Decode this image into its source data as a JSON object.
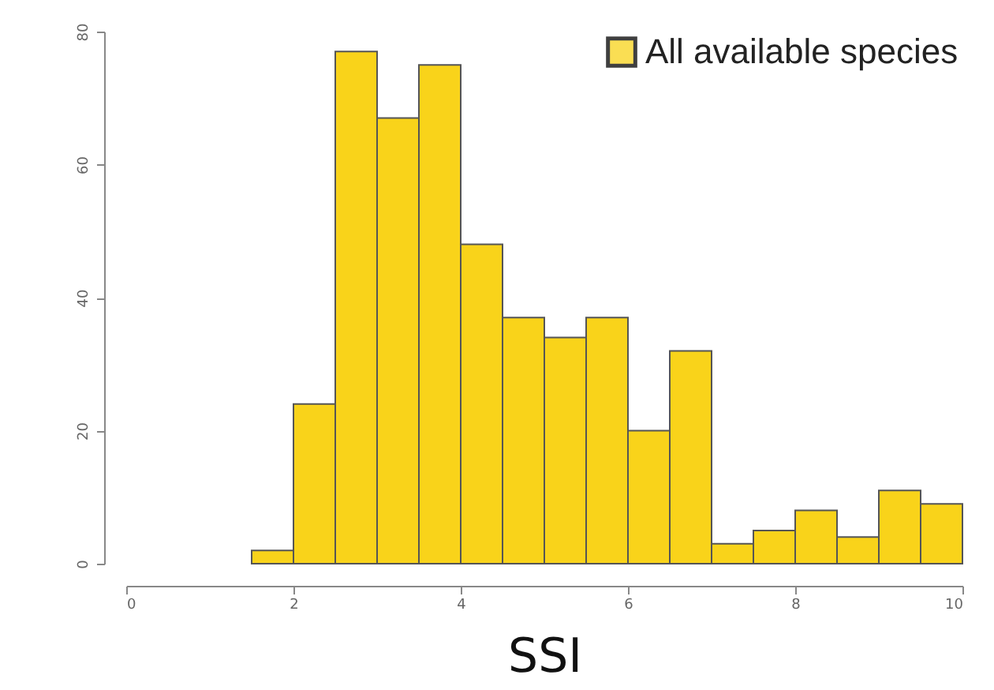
{
  "chart_data": {
    "type": "histogram",
    "xlabel": "SSI",
    "bins": [
      1.5,
      2,
      2.5,
      3,
      3.5,
      4,
      4.5,
      5,
      5.5,
      6,
      6.5,
      7,
      7.5,
      8,
      8.5,
      9,
      9.5,
      10
    ],
    "series": [
      {
        "name": "All available species",
        "color": "#f9d31a",
        "values": [
          2,
          24,
          77,
          67,
          75,
          48,
          37,
          34,
          37,
          20,
          32,
          3,
          5,
          8,
          4,
          11,
          9
        ]
      }
    ],
    "xlim": [
      0,
      10
    ],
    "xticks": [
      0,
      2,
      4,
      6,
      8,
      10
    ],
    "ylim": [
      0,
      80
    ],
    "yticks": [
      0,
      20,
      40,
      60,
      80
    ],
    "grid": false,
    "legend": "top right"
  }
}
